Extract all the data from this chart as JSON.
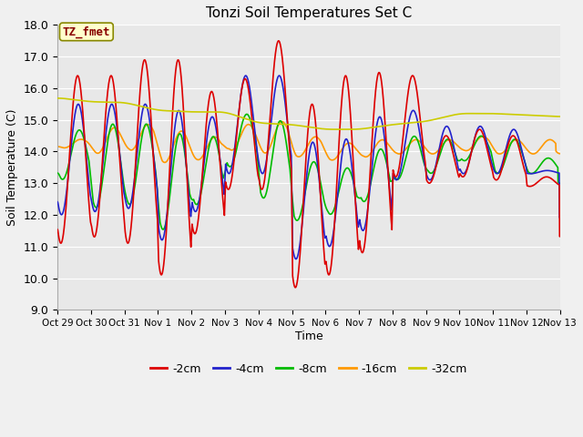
{
  "title": "Tonzi Soil Temperatures Set C",
  "xlabel": "Time",
  "ylabel": "Soil Temperature (C)",
  "ylim": [
    9.0,
    18.0
  ],
  "yticks": [
    9.0,
    10.0,
    11.0,
    12.0,
    13.0,
    14.0,
    15.0,
    16.0,
    17.0,
    18.0
  ],
  "xtick_labels": [
    "Oct 29",
    "Oct 30",
    "Oct 31",
    "Nov 1",
    "Nov 2",
    "Nov 3",
    "Nov 4",
    "Nov 5",
    "Nov 6",
    "Nov 7",
    "Nov 8",
    "Nov 9",
    "Nov 10",
    "Nov 11",
    "Nov 12",
    "Nov 13"
  ],
  "legend_label": "TZ_fmet",
  "series_labels": [
    "-2cm",
    "-4cm",
    "-8cm",
    "-16cm",
    "-32cm"
  ],
  "series_colors": [
    "#dd0000",
    "#2222cc",
    "#00bb00",
    "#ff9900",
    "#cccc00"
  ],
  "line_width": 1.2,
  "fig_bg_color": "#f0f0f0",
  "plot_bg_color": "#e8e8e8",
  "grid_color": "#ffffff",
  "annotation_box_facecolor": "#ffffcc",
  "annotation_text_color": "#880000",
  "annotation_border_color": "#888800"
}
